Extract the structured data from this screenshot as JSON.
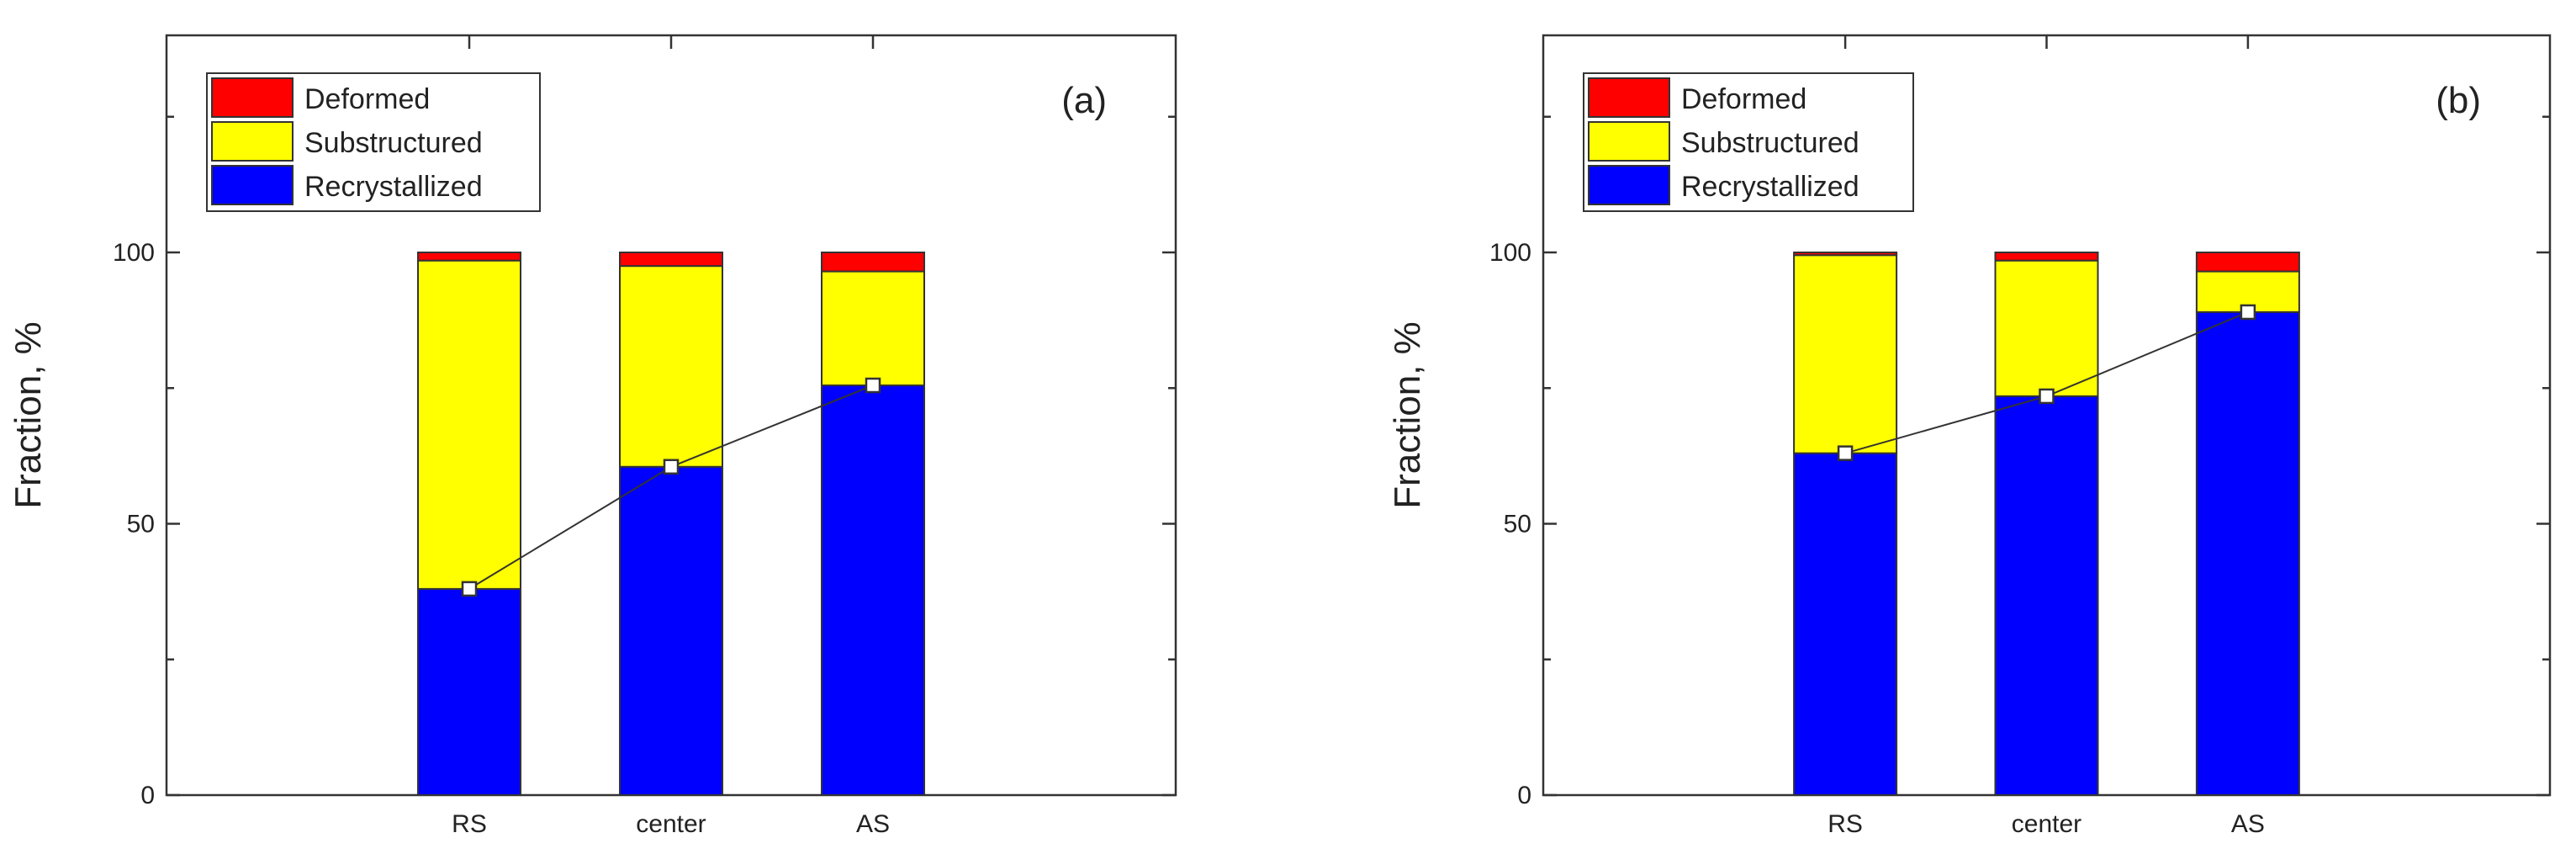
{
  "chart_data": [
    {
      "type": "bar",
      "stacked": true,
      "panel_label": "(a)",
      "ylabel": "Fraction, %",
      "xlabel": "",
      "categories": [
        "RS",
        "center",
        "AS"
      ],
      "ylim": [
        0,
        140
      ],
      "yticks": [
        0,
        50,
        100
      ],
      "grid": false,
      "legend": "top-left",
      "series": [
        {
          "name": "Recrystallized",
          "color": "#0000ff",
          "values": [
            38,
            60.5,
            75.5
          ]
        },
        {
          "name": "Substructured",
          "color": "#ffff00",
          "values": [
            60.5,
            37,
            21
          ]
        },
        {
          "name": "Deformed",
          "color": "#ff0000",
          "values": [
            1.5,
            2.5,
            3.5
          ]
        }
      ],
      "line": {
        "values": [
          38,
          60.5,
          75.5
        ]
      }
    },
    {
      "type": "bar",
      "stacked": true,
      "panel_label": "(b)",
      "ylabel": "Fraction, %",
      "xlabel": "",
      "categories": [
        "RS",
        "center",
        "AS"
      ],
      "ylim": [
        0,
        140
      ],
      "yticks": [
        0,
        50,
        100
      ],
      "grid": false,
      "legend": "top-left",
      "series": [
        {
          "name": "Recrystallized",
          "color": "#0000ff",
          "values": [
            63,
            73.5,
            89
          ]
        },
        {
          "name": "Substructured",
          "color": "#ffff00",
          "values": [
            36.5,
            25,
            7.5
          ]
        },
        {
          "name": "Deformed",
          "color": "#ff0000",
          "values": [
            0.5,
            1.5,
            3.5
          ]
        }
      ],
      "line": {
        "values": [
          63,
          73.5,
          89
        ]
      }
    }
  ]
}
